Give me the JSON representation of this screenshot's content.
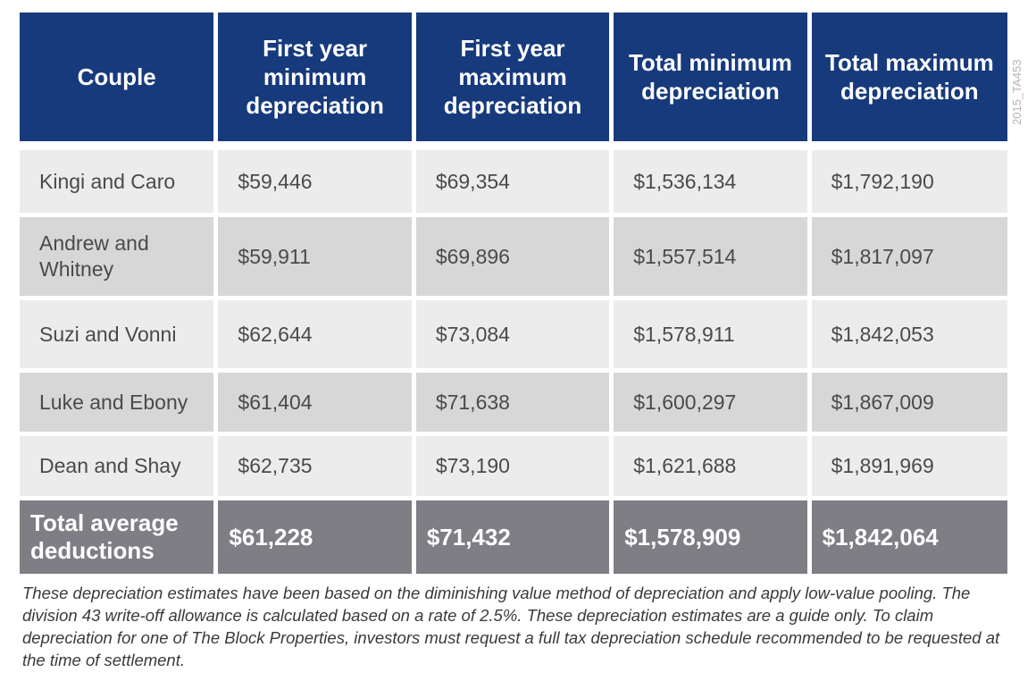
{
  "chart_data": {
    "type": "table",
    "columns": [
      "Couple",
      "First year minimum depreciation",
      "First year maximum depreciation",
      "Total minimum depreciation",
      "Total maximum depreciation"
    ],
    "rows": [
      [
        "Kingi and Caro",
        "$59,446",
        "$69,354",
        "$1,536,134",
        "$1,792,190"
      ],
      [
        "Andrew and Whitney",
        "$59,911",
        "$69,896",
        "$1,557,514",
        "$1,817,097"
      ],
      [
        "Suzi and Vonni",
        "$62,644",
        "$73,084",
        "$1,578,911",
        "$1,842,053"
      ],
      [
        "Luke and Ebony",
        "$61,404",
        "$71,638",
        "$1,600,297",
        "$1,867,009"
      ],
      [
        "Dean and Shay",
        "$62,735",
        "$73,190",
        "$1,621,688",
        "$1,891,969"
      ]
    ],
    "total": [
      "Total average deductions",
      "$61,228",
      "$71,432",
      "$1,578,909",
      "$1,842,064"
    ],
    "colors": {
      "header": "#173a7c",
      "row_light": "#ececec",
      "row_dark": "#d7d7d7",
      "total": "#7f7e84"
    }
  },
  "footnote": "These depreciation estimates have been based on the diminishing value method of depreciation and apply low-value pooling. The division 43 write-off allowance is calculated based on a rate of 2.5%. These depreciation estimates are a guide only. To claim depreciation for one of The Block Properties, investors must request a full tax depreciation schedule recommended to be requested at the time of settlement.",
  "image_code": "2015_TA453"
}
